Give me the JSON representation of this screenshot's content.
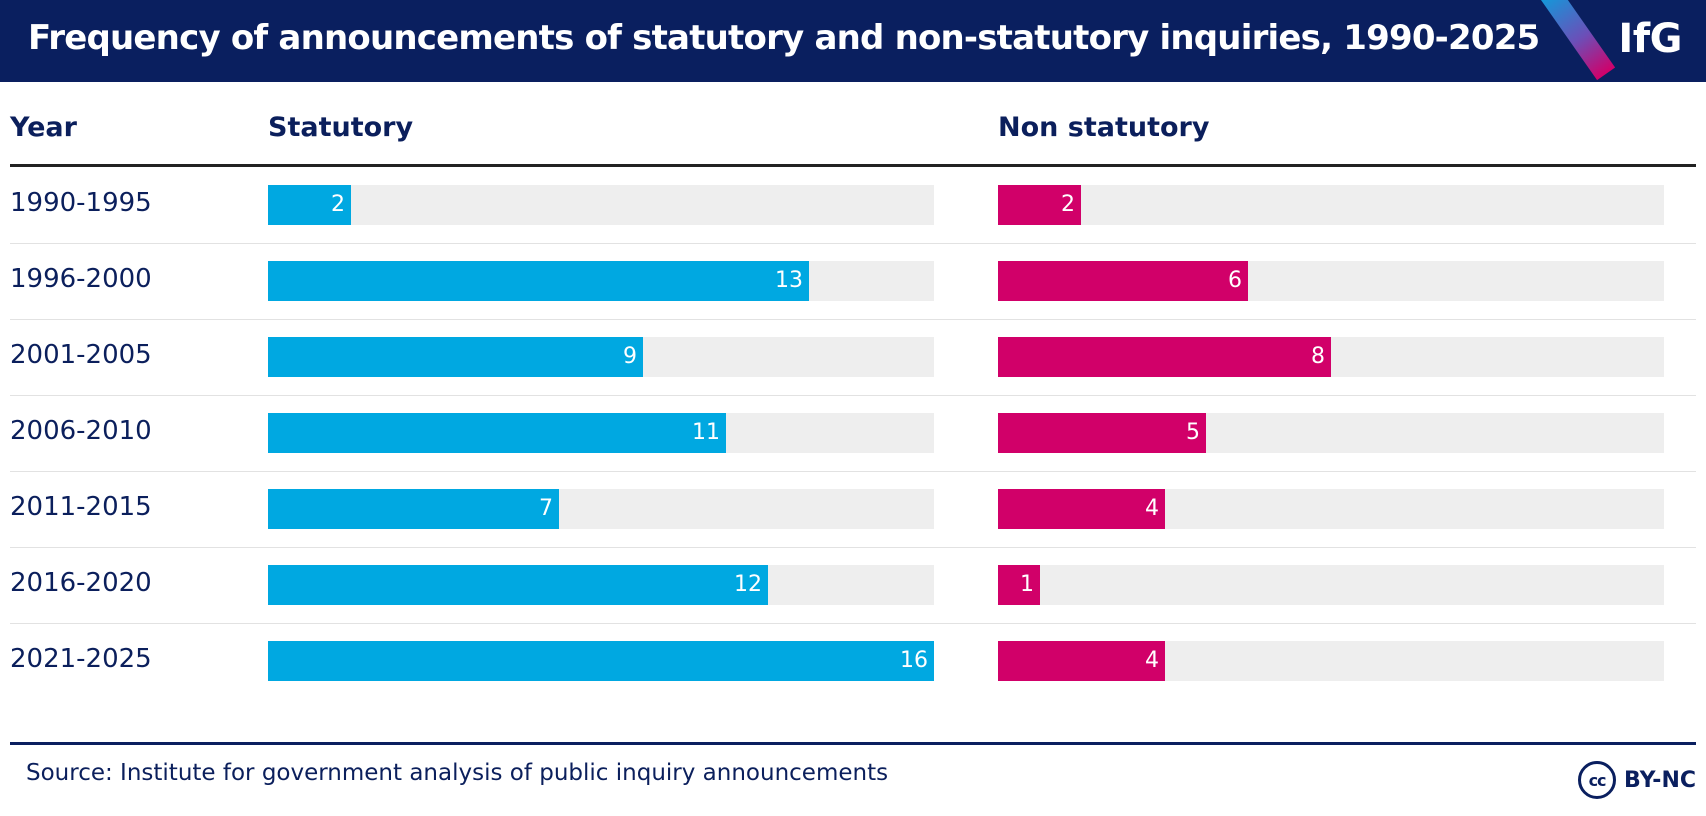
{
  "header": {
    "title": "Frequency of announcements of statutory and non-statutory inquiries, 1990-2025",
    "logo": "IfG"
  },
  "colors": {
    "statutory": "#00a8e1",
    "non_statutory": "#d10069",
    "track": "#eeeeee",
    "header_bg": "#0a1f5f"
  },
  "chart_data": {
    "type": "bar",
    "orientation": "horizontal",
    "title": "Frequency of announcements of statutory and non-statutory inquiries, 1990-2025",
    "column_headers": {
      "year": "Year",
      "statutory": "Statutory",
      "non_statutory": "Non statutory"
    },
    "categories": [
      "1990-1995",
      "1996-2000",
      "2001-2005",
      "2006-2010",
      "2011-2015",
      "2016-2020",
      "2021-2025"
    ],
    "series": [
      {
        "name": "Statutory",
        "values": [
          2,
          13,
          9,
          11,
          7,
          12,
          16
        ]
      },
      {
        "name": "Non statutory",
        "values": [
          2,
          6,
          8,
          5,
          4,
          1,
          4
        ]
      }
    ],
    "xlim": [
      0,
      16
    ]
  },
  "footer": {
    "source": "Source: Institute for government analysis of public inquiry announcements",
    "license_icon": "cc-icon",
    "license_icon_text": "cc",
    "license": "BY-NC"
  }
}
